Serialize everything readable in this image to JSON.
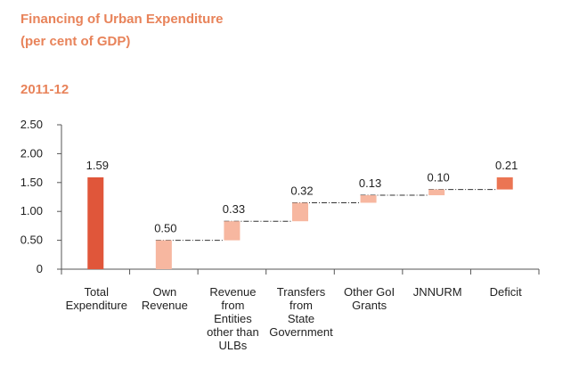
{
  "header": {
    "title_line1": "Financing of Urban Expenditure",
    "title_line2": "(per cent of GDP)",
    "period": "2011-12"
  },
  "chart_data": {
    "type": "bar",
    "subtype": "waterfall",
    "title": "Financing of Urban Expenditure (per cent of GDP)",
    "subtitle": "2011-12",
    "categories": [
      [
        "Total",
        "Expenditure"
      ],
      [
        "Own",
        "Revenue"
      ],
      [
        "Revenue",
        "from",
        "Entities",
        "other than",
        "ULBs"
      ],
      [
        "Transfers",
        "from",
        "State",
        "Government"
      ],
      [
        "Other GoI",
        "Grants"
      ],
      [
        "JNNURM"
      ],
      [
        "Deficit"
      ]
    ],
    "values": [
      1.59,
      0.5,
      0.33,
      0.32,
      0.13,
      0.1,
      0.21
    ],
    "bases": [
      0,
      0,
      0.5,
      0.83,
      1.15,
      1.28,
      1.38
    ],
    "labels": [
      "1.59",
      "0.50",
      "0.33",
      "0.32",
      "0.13",
      "0.10",
      "0.21"
    ],
    "yticks": [
      "0",
      "0.50",
      "1.00",
      "1.50",
      "2.00",
      "2.50"
    ],
    "ylim": [
      0,
      2.5
    ],
    "colors": [
      "#e0563a",
      "#f7b7a0",
      "#f7b7a0",
      "#f7b7a0",
      "#f7b7a0",
      "#f7b7a0",
      "#eb7553"
    ],
    "connector_color": "#333333",
    "grid": false
  }
}
